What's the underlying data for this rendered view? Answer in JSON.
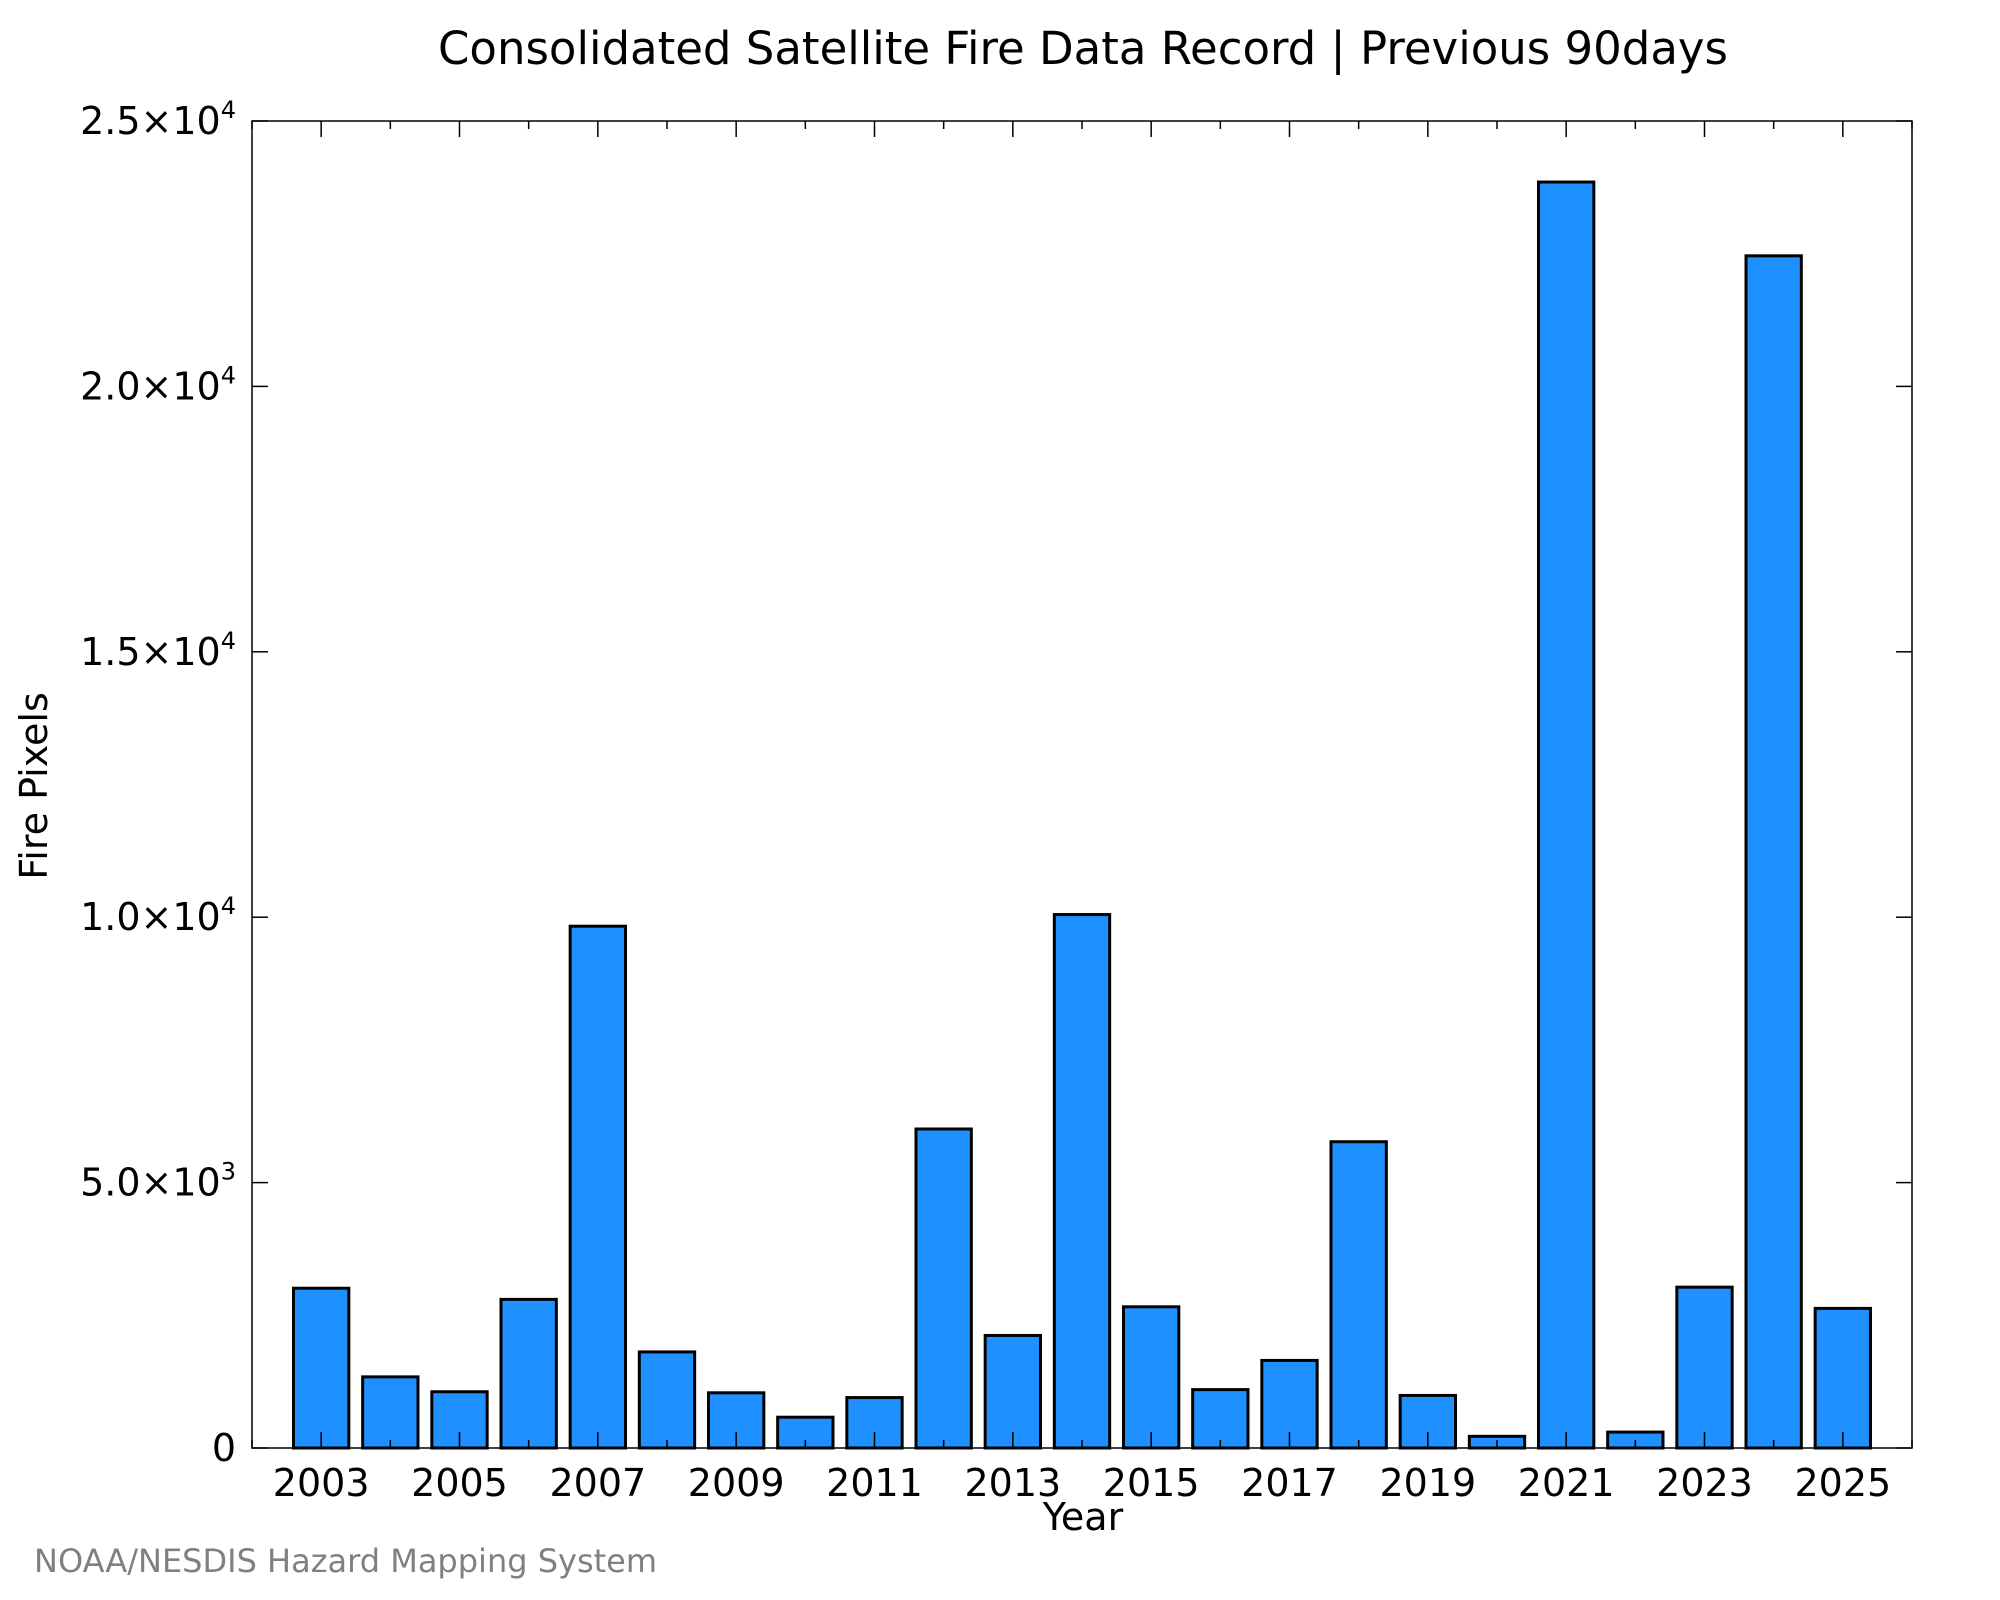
{
  "chart_data": {
    "type": "bar",
    "title": "Consolidated Satellite Fire Data Record | Previous 90days",
    "xlabel": "Year",
    "ylabel": "Fire Pixels",
    "categories": [
      "2003",
      "2004",
      "2005",
      "2006",
      "2007",
      "2008",
      "2009",
      "2010",
      "2011",
      "2012",
      "2013",
      "2014",
      "2015",
      "2016",
      "2017",
      "2018",
      "2019",
      "2020",
      "2021",
      "2022",
      "2023",
      "2024",
      "2025"
    ],
    "values": [
      3010,
      1340,
      1060,
      2800,
      9830,
      1810,
      1040,
      580,
      950,
      6010,
      2120,
      10050,
      2660,
      1100,
      1650,
      5770,
      990,
      220,
      23850,
      300,
      3030,
      22460,
      2630
    ],
    "x_tick_labels": [
      "2003",
      "2005",
      "2007",
      "2009",
      "2011",
      "2013",
      "2015",
      "2017",
      "2019",
      "2021",
      "2023",
      "2025"
    ],
    "ylim": [
      0,
      25000
    ],
    "y_ticks": [
      {
        "value": 0,
        "mantissa": "0",
        "exponent": ""
      },
      {
        "value": 5000,
        "mantissa": "5.0×10",
        "exponent": "3"
      },
      {
        "value": 10000,
        "mantissa": "1.0×10",
        "exponent": "4"
      },
      {
        "value": 15000,
        "mantissa": "1.5×10",
        "exponent": "4"
      },
      {
        "value": 20000,
        "mantissa": "2.0×10",
        "exponent": "4"
      },
      {
        "value": 25000,
        "mantissa": "2.5×10",
        "exponent": "4"
      }
    ],
    "grid": false,
    "bar_color": "#1e90ff",
    "bar_edge_color": "#000000"
  },
  "footer": {
    "credit": "NOAA/NESDIS Hazard Mapping System",
    "credit_color": "#808080"
  }
}
